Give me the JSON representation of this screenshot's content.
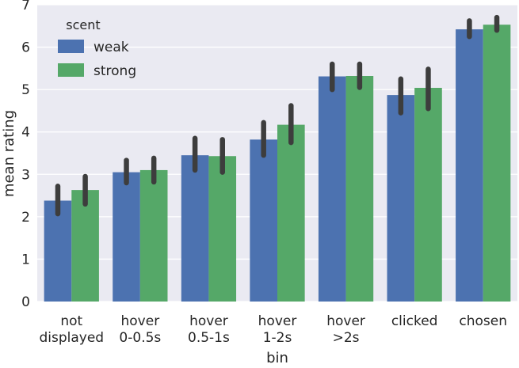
{
  "chart_data": {
    "type": "bar",
    "xlabel": "bin",
    "ylabel": "mean rating",
    "ylim": [
      0,
      7
    ],
    "yticks": [
      "0",
      "1",
      "2",
      "3",
      "4",
      "5",
      "6",
      "7"
    ],
    "grid": "horizontal",
    "categories": [
      [
        "not",
        "displayed"
      ],
      [
        "hover",
        "0-0.5s"
      ],
      [
        "hover",
        "0.5-1s"
      ],
      [
        "hover",
        "1-2s"
      ],
      [
        "hover",
        ">2s"
      ],
      [
        "clicked"
      ],
      [
        "chosen"
      ]
    ],
    "legend": {
      "title": "scent",
      "placement": "top-left"
    },
    "series": [
      {
        "name": "weak",
        "color": "#4c72b0",
        "values": [
          2.38,
          3.05,
          3.45,
          3.82,
          5.31,
          4.87,
          6.42
        ],
        "ci_low": [
          2.07,
          2.8,
          3.1,
          3.45,
          5.0,
          4.45,
          6.25
        ],
        "ci_high": [
          2.72,
          3.33,
          3.85,
          4.22,
          5.6,
          5.25,
          6.62
        ]
      },
      {
        "name": "strong",
        "color": "#55a868",
        "values": [
          2.63,
          3.1,
          3.43,
          4.17,
          5.32,
          5.04,
          6.53
        ],
        "ci_low": [
          2.3,
          2.82,
          3.05,
          3.75,
          5.05,
          4.55,
          6.4
        ],
        "ci_high": [
          2.95,
          3.38,
          3.82,
          4.62,
          5.6,
          5.48,
          6.7
        ]
      }
    ]
  }
}
